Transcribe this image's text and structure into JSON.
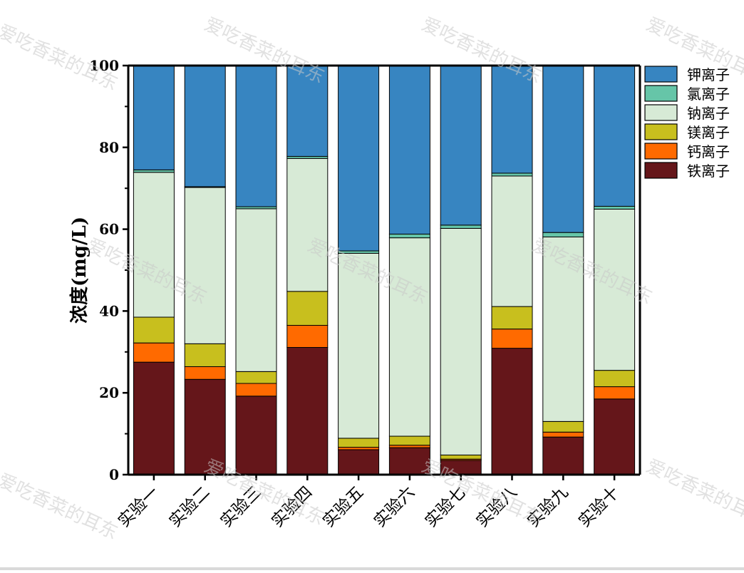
{
  "watermark": "爱吃香菜的耳东",
  "chart_data": {
    "type": "bar",
    "stacked": true,
    "title": "",
    "xlabel": "",
    "ylabel": "浓度(mg/L)",
    "ylim": [
      0,
      100
    ],
    "yticks": [
      "0",
      "20",
      "40",
      "60",
      "80",
      "100"
    ],
    "categories": [
      "实验一",
      "实验二",
      "实验三",
      "实验四",
      "实验五",
      "实验六",
      "实验七",
      "实验八",
      "实验九",
      "实验十"
    ],
    "legend_position": "top-right-outside",
    "series": [
      {
        "name": "铁离子",
        "color": "#65161a",
        "values": [
          27.5,
          23.3,
          19.2,
          31.1,
          6.1,
          6.6,
          3.5,
          30.9,
          9.2,
          18.5
        ]
      },
      {
        "name": "钙离子",
        "color": "#ff6a00",
        "values": [
          4.7,
          3.1,
          3.1,
          5.4,
          0.6,
          0.6,
          0.3,
          4.7,
          1.2,
          3.0
        ]
      },
      {
        "name": "镁离子",
        "color": "#c8bf1e",
        "values": [
          6.3,
          5.6,
          2.9,
          8.3,
          2.2,
          2.2,
          1.0,
          5.5,
          2.6,
          4.0
        ]
      },
      {
        "name": "钠离子",
        "color": "#d7ead6",
        "values": [
          35.4,
          38.2,
          39.8,
          32.5,
          45.2,
          48.5,
          55.4,
          31.9,
          45.1,
          39.4
        ]
      },
      {
        "name": "氯离子",
        "color": "#66c5a8",
        "values": [
          0.6,
          0.2,
          0.5,
          0.5,
          0.6,
          0.9,
          0.8,
          0.7,
          1.1,
          0.7
        ]
      },
      {
        "name": "钾离子",
        "color": "#3785c1",
        "values": [
          25.5,
          29.6,
          34.5,
          22.2,
          45.3,
          41.2,
          39.0,
          26.3,
          40.8,
          34.4
        ]
      }
    ]
  }
}
